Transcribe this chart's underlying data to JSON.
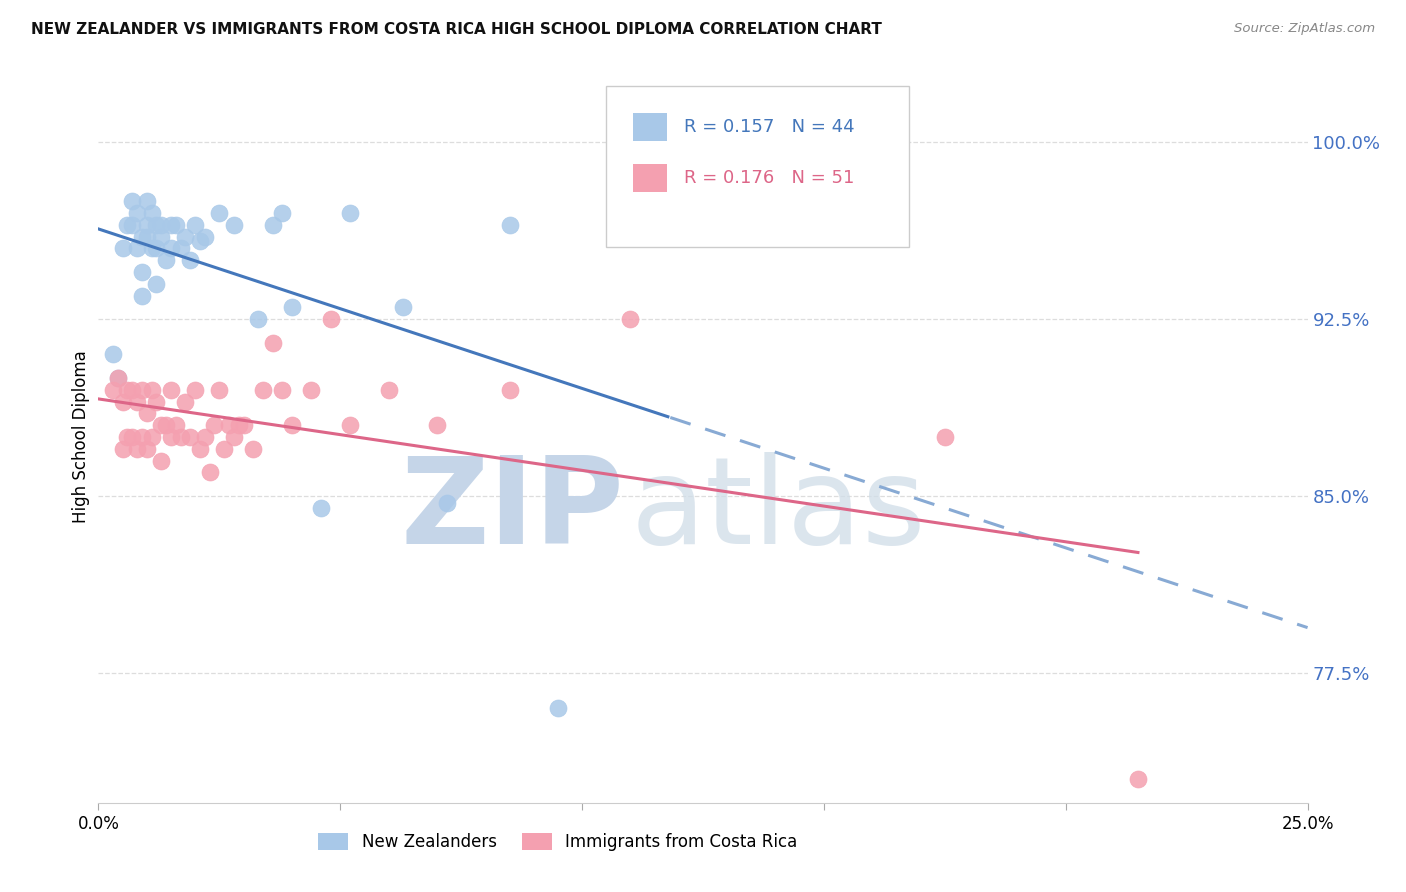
{
  "title": "NEW ZEALANDER VS IMMIGRANTS FROM COSTA RICA HIGH SCHOOL DIPLOMA CORRELATION CHART",
  "source": "Source: ZipAtlas.com",
  "ylabel": "High School Diploma",
  "ytick_labels": [
    "100.0%",
    "92.5%",
    "85.0%",
    "77.5%"
  ],
  "ytick_values": [
    1.0,
    0.925,
    0.85,
    0.775
  ],
  "xlim": [
    0.0,
    0.25
  ],
  "ylim": [
    0.72,
    1.03
  ],
  "legend_blue_r": "0.157",
  "legend_blue_n": "44",
  "legend_pink_r": "0.176",
  "legend_pink_n": "51",
  "blue_scatter_color": "#a8c8e8",
  "pink_scatter_color": "#f4a0b0",
  "blue_line_color": "#4477bb",
  "pink_line_color": "#dd6688",
  "blue_line_dash_color": "#88aad4",
  "background_color": "#ffffff",
  "grid_color": "#dddddd",
  "nz_x": [
    0.003,
    0.004,
    0.005,
    0.006,
    0.007,
    0.007,
    0.008,
    0.008,
    0.009,
    0.009,
    0.009,
    0.01,
    0.01,
    0.01,
    0.011,
    0.011,
    0.012,
    0.012,
    0.012,
    0.013,
    0.013,
    0.014,
    0.015,
    0.015,
    0.016,
    0.017,
    0.018,
    0.019,
    0.02,
    0.021,
    0.022,
    0.025,
    0.028,
    0.033,
    0.036,
    0.038,
    0.04,
    0.046,
    0.052,
    0.063,
    0.072,
    0.085,
    0.095,
    0.118
  ],
  "nz_y": [
    0.91,
    0.9,
    0.955,
    0.965,
    0.975,
    0.965,
    0.955,
    0.97,
    0.96,
    0.945,
    0.935,
    0.975,
    0.965,
    0.96,
    0.97,
    0.955,
    0.965,
    0.955,
    0.94,
    0.96,
    0.965,
    0.95,
    0.965,
    0.955,
    0.965,
    0.955,
    0.96,
    0.95,
    0.965,
    0.958,
    0.96,
    0.97,
    0.965,
    0.925,
    0.965,
    0.97,
    0.93,
    0.845,
    0.97,
    0.93,
    0.847,
    0.965,
    0.76,
    0.97
  ],
  "cr_x": [
    0.003,
    0.004,
    0.005,
    0.005,
    0.006,
    0.006,
    0.007,
    0.007,
    0.008,
    0.008,
    0.009,
    0.009,
    0.01,
    0.01,
    0.011,
    0.011,
    0.012,
    0.013,
    0.013,
    0.014,
    0.015,
    0.015,
    0.016,
    0.017,
    0.018,
    0.019,
    0.02,
    0.021,
    0.022,
    0.023,
    0.024,
    0.025,
    0.026,
    0.027,
    0.028,
    0.029,
    0.03,
    0.032,
    0.034,
    0.036,
    0.038,
    0.04,
    0.044,
    0.048,
    0.052,
    0.06,
    0.07,
    0.085,
    0.11,
    0.175,
    0.215
  ],
  "cr_y": [
    0.895,
    0.9,
    0.89,
    0.87,
    0.895,
    0.875,
    0.895,
    0.875,
    0.89,
    0.87,
    0.895,
    0.875,
    0.885,
    0.87,
    0.895,
    0.875,
    0.89,
    0.88,
    0.865,
    0.88,
    0.895,
    0.875,
    0.88,
    0.875,
    0.89,
    0.875,
    0.895,
    0.87,
    0.875,
    0.86,
    0.88,
    0.895,
    0.87,
    0.88,
    0.875,
    0.88,
    0.88,
    0.87,
    0.895,
    0.915,
    0.895,
    0.88,
    0.895,
    0.925,
    0.88,
    0.895,
    0.88,
    0.895,
    0.925,
    0.875,
    0.73
  ]
}
